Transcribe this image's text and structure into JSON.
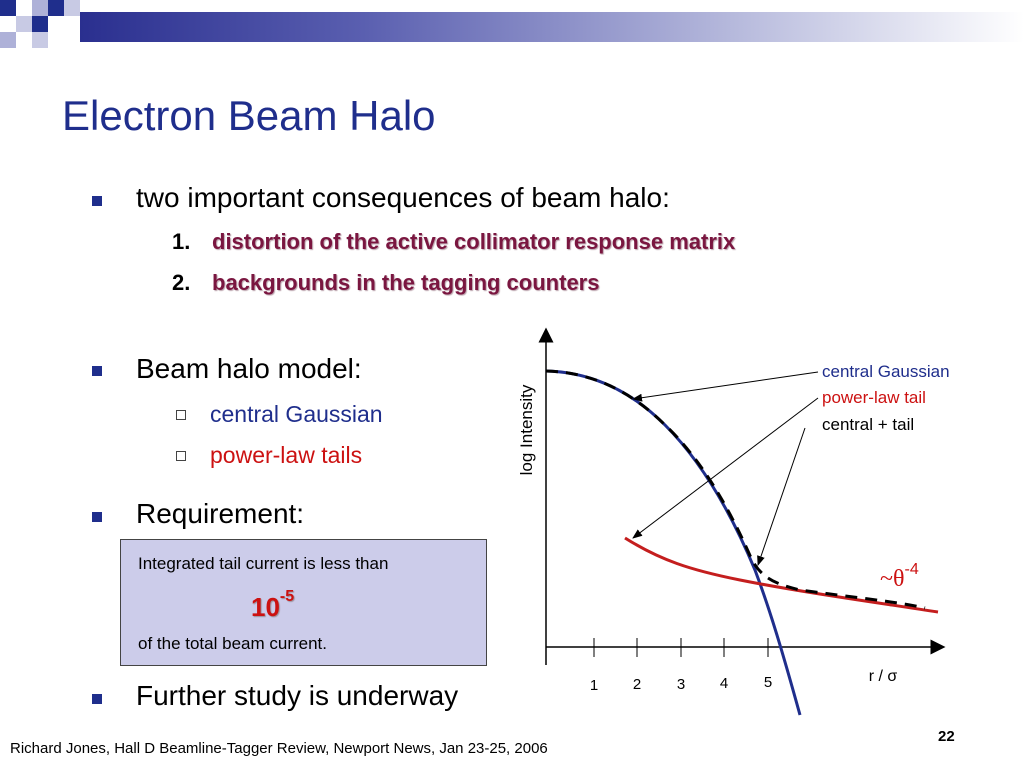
{
  "slide": {
    "title": "Electron Beam Halo",
    "bullets": [
      {
        "text": "two important consequences of beam halo:",
        "items": [
          {
            "number": "1.",
            "text": "distortion of the active collimator response matrix"
          },
          {
            "number": "2.",
            "text": "backgrounds in the tagging counters"
          }
        ]
      },
      {
        "text": "Beam halo model:",
        "items": [
          {
            "text": "central Gaussian"
          },
          {
            "text": "power-law tails"
          }
        ]
      },
      {
        "text": "Requirement:"
      },
      {
        "text": "Further study is underway"
      }
    ],
    "requirement_box": {
      "line1": "Integrated tail current is less than",
      "value_base": "10",
      "value_exponent": "-5",
      "line3": "of the total beam current."
    },
    "footer": "Richard Jones, Hall D Beamline-Tagger Review, Newport News, Jan 23-25, 2006",
    "page_number": "22"
  },
  "diagram": {
    "ylabel": "log Intensity",
    "xlabel": "r / σ",
    "ticks": [
      "1",
      "2",
      "3",
      "4",
      "5"
    ],
    "legend": [
      {
        "label": "central Gaussian",
        "color": "#1f2e8c"
      },
      {
        "label": "power-law tail",
        "color": "#cc1111"
      },
      {
        "label": "central + tail",
        "color": "#000000"
      }
    ],
    "annotation_prefix": "~θ",
    "annotation_exponent": "-4",
    "colors": {
      "gaussian": "#1f2e8c",
      "tail": "#c41e1e",
      "sum": "#000000",
      "text_blue": "#1f2e8c",
      "text_red": "#cc1111",
      "title_blue": "#1f2e8c",
      "highlight": "#7a1640"
    }
  }
}
